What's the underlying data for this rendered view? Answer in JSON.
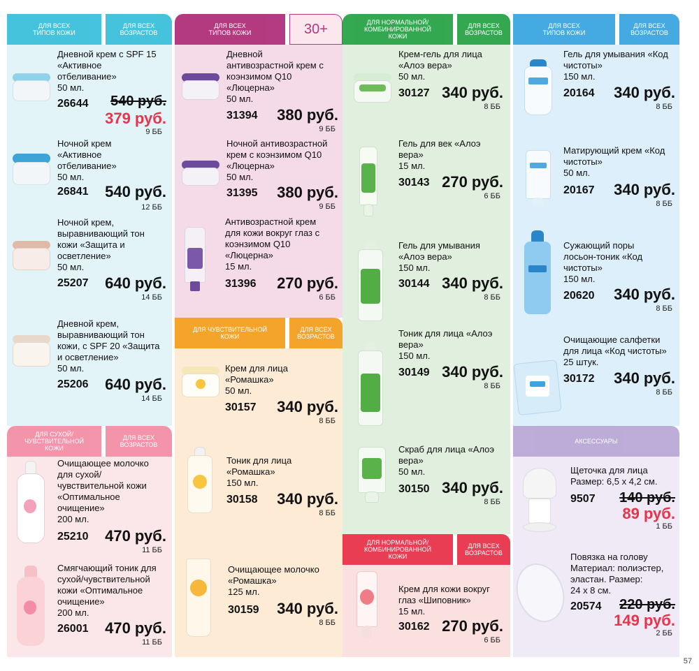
{
  "colors": {
    "blue": "#23b4d8",
    "magenta": "#b0307a",
    "green": "#2aa448",
    "pink": "#e8334a",
    "orange": "#f39a1e",
    "lilac": "#b9a9d6",
    "sky": "#3aa6e0"
  },
  "tabs": {
    "c1_a": "ДЛЯ ВСЕХ\nТИПОВ КОЖИ",
    "c1_b": "ДЛЯ ВСЕХ\nВОЗРАСТОВ",
    "c2_a": "ДЛЯ ВСЕХ\nТИПОВ КОЖИ",
    "c2_b": "30+",
    "c3_a": "ДЛЯ НОРМАЛЬНОЙ/\nКОМБИНИРОВАННОЙ\nКОЖИ",
    "c3_b": "ДЛЯ ВСЕХ\nВОЗРАСТОВ",
    "c4_a": "ДЛЯ ВСЕХ\nТИПОВ КОЖИ",
    "c4_b": "ДЛЯ ВСЕХ\nВОЗРАСТОВ",
    "c1b_a": "ДЛЯ СУХОЙ/\nЧУВСТВИТЕЛЬНОЙ\nКОЖИ",
    "c1b_b": "ДЛЯ ВСЕХ\nВОЗРАСТОВ",
    "c2b_a": "ДЛЯ ЧУВСТВИТЕЛЬНОЙ\nКОЖИ",
    "c2b_b": "ДЛЯ ВСЕХ\nВОЗРАСТОВ",
    "c3b_a": "ДЛЯ НОРМАЛЬНОЙ/\nКОМБИНИРОВАННОЙ\nКОЖИ",
    "c3b_b": "ДЛЯ ВСЕХ\nВОЗРАСТОВ",
    "c4b_a": "АКСЕССУАРЫ"
  },
  "products": {
    "p26644": {
      "name": "Дневной крем с SPF 15\n«Активное\nотбеливание»\n50 мл.",
      "code": "26644",
      "old": "540 руб.",
      "new": "379 руб.",
      "bb": "9 ББ"
    },
    "p26841": {
      "name": "Ночной крем\n«Активное\nотбеливание»\n50 мл.",
      "code": "26841",
      "price": "540 руб.",
      "bb": "12 ББ"
    },
    "p25207": {
      "name": "Ночной крем,\nвыравнивающий тон\nкожи «Защита и\nосветление»\n50 мл.",
      "code": "25207",
      "price": "640 руб.",
      "bb": "14 ББ"
    },
    "p25206": {
      "name": "Дневной крем,\nвыравнивающий тон\nкожи, с SPF 20 «Защита\nи осветление»\n50 мл.",
      "code": "25206",
      "price": "640 руб.",
      "bb": "14 ББ"
    },
    "p25210": {
      "name": "Очищающее молочко\nдля сухой/\nчувствительной кожи\n«Оптимальное\nочищение»\n200 мл.",
      "code": "25210",
      "price": "470 руб.",
      "bb": "11 ББ"
    },
    "p26001": {
      "name": "Смягчающий тоник для\nсухой/чувствительной\nкожи «Оптимальное\nочищение»\n200 мл.",
      "code": "26001",
      "price": "470 руб.",
      "bb": "11 ББ"
    },
    "p31394": {
      "name": "Дневной\nантивозрастной крем с\nкоэнзимом Q10\n«Люцерна»\n50 мл.",
      "code": "31394",
      "price": "380 руб.",
      "bb": "9 ББ"
    },
    "p31395": {
      "name": "Ночной антивозрастной\nкрем с коэнзимом Q10\n«Люцерна»\n50 мл.",
      "code": "31395",
      "price": "380 руб.",
      "bb": "9 ББ"
    },
    "p31396": {
      "name": "Антивозрастной крем\nдля кожи вокруг глаз с\nкоэнзимом Q10\n«Люцерна»\n15 мл.",
      "code": "31396",
      "price": "270 руб.",
      "bb": "6 ББ"
    },
    "p30157": {
      "name": "Крем для лица\n«Ромашка»\n50 мл.",
      "code": "30157",
      "price": "340 руб.",
      "bb": "8 ББ"
    },
    "p30158": {
      "name": "Тоник для лица\n«Ромашка»\n150 мл.",
      "code": "30158",
      "price": "340 руб.",
      "bb": "8 ББ"
    },
    "p30159": {
      "name": "Очищающее молочко\n«Ромашка»\n125 мл.",
      "code": "30159",
      "price": "340 руб.",
      "bb": "8 ББ"
    },
    "p30127": {
      "name": "Крем-гель для лица\n«Алоэ вера»\n50 мл.",
      "code": "30127",
      "price": "340 руб.",
      "bb": "8 ББ"
    },
    "p30143": {
      "name": "Гель для век «Алоэ\nвера»\n15 мл.",
      "code": "30143",
      "price": "270 руб.",
      "bb": "6 ББ"
    },
    "p30144": {
      "name": "Гель для умывания\n«Алоэ вера»\n150 мл.",
      "code": "30144",
      "price": "340 руб.",
      "bb": "8 ББ"
    },
    "p30149": {
      "name": "Тоник для лица «Алоэ\nвера»\n150 мл.",
      "code": "30149",
      "price": "340 руб.",
      "bb": "8 ББ"
    },
    "p30150": {
      "name": "Скраб для лица «Алоэ\nвера»\n50 мл.",
      "code": "30150",
      "price": "340 руб.",
      "bb": "8 ББ"
    },
    "p30162": {
      "name": "Крем для кожи вокруг\nглаз «Шиповник»\n15 мл.",
      "code": "30162",
      "price": "270 руб.",
      "bb": "6 ББ"
    },
    "p20164": {
      "name": "Гель для умывания «Код\nчистоты»\n150 мл.",
      "code": "20164",
      "price": "340 руб.",
      "bb": "8 ББ"
    },
    "p20167": {
      "name": "Матирующий крем «Код\nчистоты»\n50 мл.",
      "code": "20167",
      "price": "340 руб.",
      "bb": "8 ББ"
    },
    "p20620": {
      "name": "Сужающий поры\nлосьон-тоник «Код\nчистоты»\n150 мл.",
      "code": "20620",
      "price": "340 руб.",
      "bb": "8 ББ"
    },
    "p30172": {
      "name": "Очищающие салфетки\nдля лица «Код чистоты»\n25 штук.",
      "code": "30172",
      "price": "340 руб.",
      "bb": "8 ББ"
    },
    "p9507": {
      "name": "Щеточка для лица\nРазмер: 6,5 х 4,2 см.",
      "code": "9507",
      "old": "140 руб.",
      "new": "89 руб.",
      "bb": "1 ББ"
    },
    "p20574": {
      "name": "Повязка на голову\nМатериал: полиэстер,\nэластан. Размер:\n24 х 8 см.",
      "code": "20574",
      "old": "220 руб.",
      "new": "149 руб.",
      "bb": "2 ББ"
    }
  },
  "page_number": "57"
}
